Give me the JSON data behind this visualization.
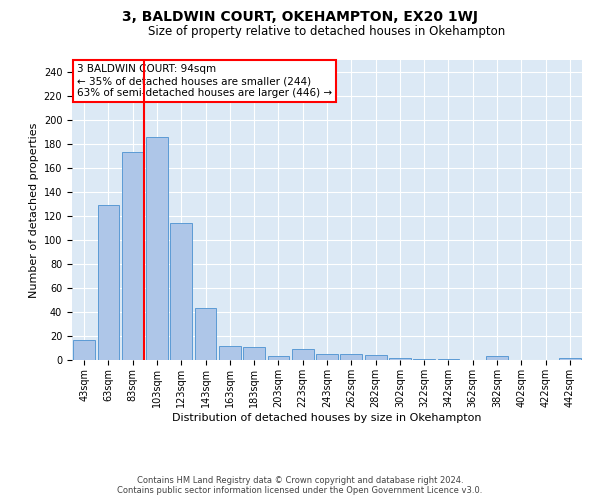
{
  "title": "3, BALDWIN COURT, OKEHAMPTON, EX20 1WJ",
  "subtitle": "Size of property relative to detached houses in Okehampton",
  "xlabel": "Distribution of detached houses by size in Okehampton",
  "ylabel": "Number of detached properties",
  "footer_line1": "Contains HM Land Registry data © Crown copyright and database right 2024.",
  "footer_line2": "Contains public sector information licensed under the Open Government Licence v3.0.",
  "annotation_line1": "3 BALDWIN COURT: 94sqm",
  "annotation_line2": "← 35% of detached houses are smaller (244)",
  "annotation_line3": "63% of semi-detached houses are larger (446) →",
  "bar_labels": [
    "43sqm",
    "63sqm",
    "83sqm",
    "103sqm",
    "123sqm",
    "143sqm",
    "163sqm",
    "183sqm",
    "203sqm",
    "223sqm",
    "243sqm",
    "262sqm",
    "282sqm",
    "302sqm",
    "322sqm",
    "342sqm",
    "362sqm",
    "382sqm",
    "402sqm",
    "422sqm",
    "442sqm"
  ],
  "bar_values": [
    17,
    129,
    173,
    186,
    114,
    43,
    12,
    11,
    3,
    9,
    5,
    5,
    4,
    2,
    1,
    1,
    0,
    3,
    0,
    0,
    2
  ],
  "bar_color": "#aec6e8",
  "bar_edge_color": "#5b9bd5",
  "vline_color": "red",
  "annotation_box_color": "red",
  "background_color": "#dce9f5",
  "ylim": [
    0,
    250
  ],
  "yticks": [
    0,
    20,
    40,
    60,
    80,
    100,
    120,
    140,
    160,
    180,
    200,
    220,
    240
  ],
  "title_fontsize": 10,
  "subtitle_fontsize": 8.5,
  "ylabel_fontsize": 8,
  "xlabel_fontsize": 8,
  "tick_fontsize": 7,
  "annotation_fontsize": 7.5,
  "footer_fontsize": 6
}
